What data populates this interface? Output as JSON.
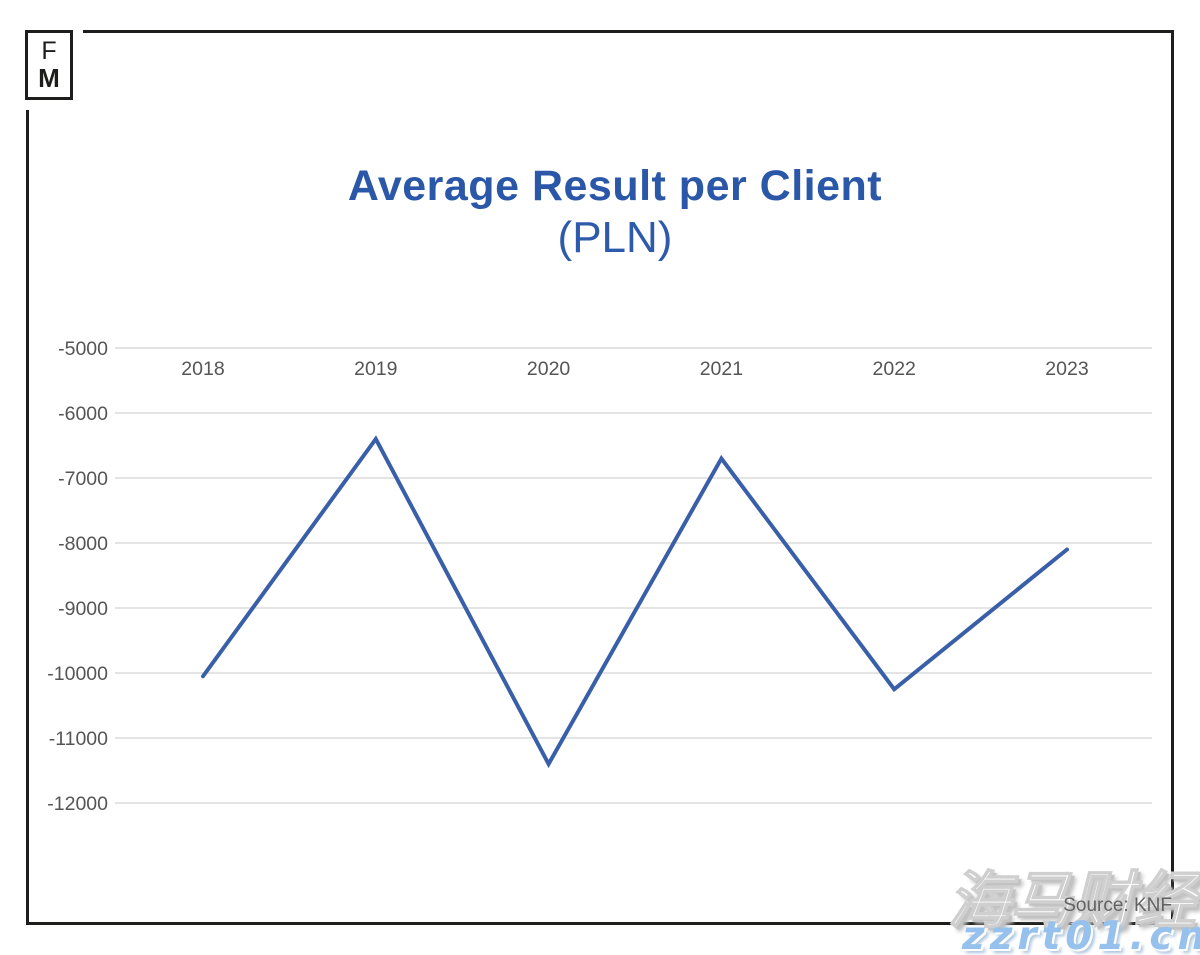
{
  "logo": {
    "letter_top": "F",
    "letter_bottom": "M"
  },
  "title": {
    "main": "Average Result per Client",
    "sub": "(PLN)"
  },
  "source": {
    "label": "Source: KNF"
  },
  "watermark": {
    "cjk": "海马财经",
    "url": "zzrt01.cn"
  },
  "colors": {
    "title_blue": "#2b57a8",
    "line_blue": "#3a5fa9",
    "grid_gray": "#dcdcdc",
    "axis_text_gray": "#555555",
    "frame_black": "#1d1d1b",
    "watermark_blue": "#96c1ec",
    "source_gray": "#636363"
  },
  "chart_data": {
    "type": "line",
    "title": "Average Result per Client",
    "subtitle": "(PLN)",
    "xlabel": "",
    "ylabel": "",
    "categories": [
      "2018",
      "2019",
      "2020",
      "2021",
      "2022",
      "2023"
    ],
    "series": [
      {
        "name": "Average result per client (PLN)",
        "values": [
          -10050,
          -6400,
          -11400,
          -6700,
          -10250,
          -8100
        ]
      }
    ],
    "ylim": [
      -12000,
      -5000
    ],
    "yticks": [
      -5000,
      -6000,
      -7000,
      -8000,
      -9000,
      -10000,
      -11000,
      -12000
    ],
    "ytick_interval": 1000,
    "grid": "horizontal-only",
    "legend": "none",
    "line_color": "#3a5fa9",
    "line_width": 4
  }
}
